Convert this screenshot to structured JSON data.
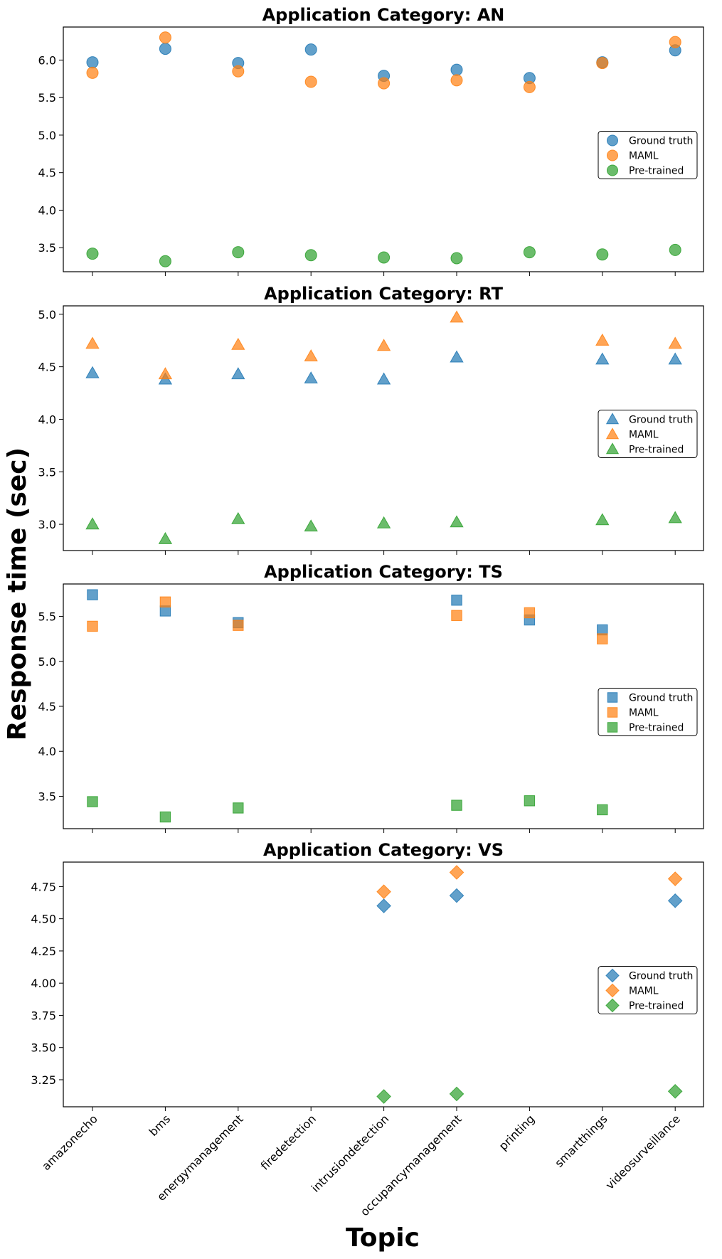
{
  "xlabel": "Topic",
  "ylabel": "Response time (sec)",
  "colors": {
    "ground_truth": "#1f77b4",
    "maml": "#ff7f0e",
    "pretrained": "#2ca02c"
  },
  "chart_data": [
    {
      "type": "scatter",
      "title": "Application Category: AN",
      "marker": "circle",
      "categories": [
        "amazonecho",
        "bms",
        "energymanagement",
        "firedetection",
        "intrusiondetection",
        "occupancymanagement",
        "printing",
        "smartthings",
        "videosurveillance"
      ],
      "yticks": [
        3.5,
        4.0,
        4.5,
        5.0,
        5.5,
        6.0
      ],
      "ylim": [
        3.18,
        6.44
      ],
      "legend_position": "center-right",
      "series": [
        {
          "name": "Ground truth",
          "values": [
            5.97,
            6.15,
            5.96,
            6.14,
            5.79,
            5.87,
            5.76,
            5.97,
            6.13
          ]
        },
        {
          "name": "MAML",
          "values": [
            5.83,
            6.3,
            5.85,
            5.71,
            5.69,
            5.73,
            5.64,
            5.96,
            6.24
          ]
        },
        {
          "name": "Pre-trained",
          "values": [
            3.42,
            3.32,
            3.44,
            3.4,
            3.37,
            3.36,
            3.44,
            3.41,
            3.47
          ]
        }
      ]
    },
    {
      "type": "scatter",
      "title": "Application Category: RT",
      "marker": "triangle",
      "categories": [
        "amazonecho",
        "bms",
        "energymanagement",
        "firedetection",
        "intrusiondetection",
        "occupancymanagement",
        "printing",
        "smartthings",
        "videosurveillance"
      ],
      "yticks": [
        3.0,
        3.5,
        4.0,
        4.5,
        5.0
      ],
      "ylim": [
        2.75,
        5.08
      ],
      "legend_position": "center-right",
      "series": [
        {
          "name": "Ground truth",
          "values": [
            4.44,
            4.38,
            4.43,
            4.39,
            4.38,
            4.59,
            null,
            4.57,
            4.57
          ]
        },
        {
          "name": "MAML",
          "values": [
            4.72,
            4.43,
            4.71,
            4.6,
            4.7,
            4.97,
            null,
            4.75,
            4.72
          ]
        },
        {
          "name": "Pre-trained",
          "values": [
            3.0,
            2.86,
            3.05,
            2.98,
            3.01,
            3.02,
            null,
            3.04,
            3.06
          ]
        }
      ]
    },
    {
      "type": "scatter",
      "title": "Application Category: TS",
      "marker": "square",
      "categories": [
        "amazonecho",
        "bms",
        "energymanagement",
        "firedetection",
        "intrusiondetection",
        "occupancymanagement",
        "printing",
        "smartthings",
        "videosurveillance"
      ],
      "yticks": [
        3.5,
        4.0,
        4.5,
        5.0,
        5.5
      ],
      "ylim": [
        3.14,
        5.86
      ],
      "legend_position": "center-right",
      "series": [
        {
          "name": "Ground truth",
          "values": [
            5.74,
            5.56,
            5.43,
            null,
            null,
            5.68,
            5.46,
            5.35,
            null
          ]
        },
        {
          "name": "MAML",
          "values": [
            5.39,
            5.66,
            5.4,
            null,
            null,
            5.51,
            5.54,
            5.25,
            null
          ]
        },
        {
          "name": "Pre-trained",
          "values": [
            3.44,
            3.27,
            3.37,
            null,
            null,
            3.4,
            3.45,
            3.35,
            null
          ]
        }
      ]
    },
    {
      "type": "scatter",
      "title": "Application Category: VS",
      "marker": "diamond",
      "categories": [
        "amazonecho",
        "bms",
        "energymanagement",
        "firedetection",
        "intrusiondetection",
        "occupancymanagement",
        "printing",
        "smartthings",
        "videosurveillance"
      ],
      "yticks": [
        3.25,
        3.5,
        3.75,
        4.0,
        4.25,
        4.5,
        4.75
      ],
      "ylim": [
        3.04,
        4.94
      ],
      "legend_position": "center-right",
      "series": [
        {
          "name": "Ground truth",
          "values": [
            null,
            null,
            null,
            null,
            4.6,
            4.68,
            null,
            null,
            4.64
          ]
        },
        {
          "name": "MAML",
          "values": [
            null,
            null,
            null,
            null,
            4.71,
            4.86,
            null,
            null,
            4.81
          ]
        },
        {
          "name": "Pre-trained",
          "values": [
            null,
            null,
            null,
            null,
            3.12,
            3.14,
            null,
            null,
            3.16
          ]
        }
      ]
    }
  ]
}
